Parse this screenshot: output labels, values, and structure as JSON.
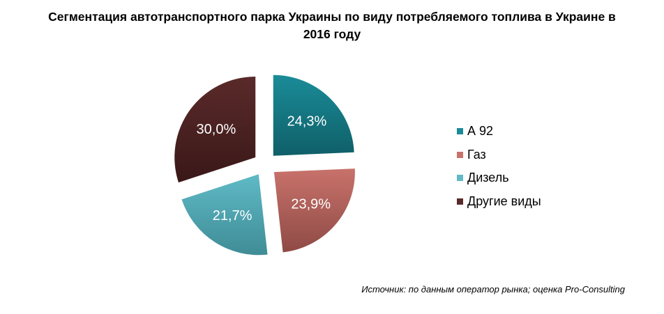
{
  "chart_data": {
    "type": "pie",
    "title_line1": "Сегментация автотранспортного парка Украины по виду потребляемого топлива в Украине в",
    "title_line2": "2016 году",
    "slices": [
      {
        "name": "А 92",
        "value": 24.3,
        "label": "24,3%",
        "color": "#1a8c98",
        "dark": "#0f5f68"
      },
      {
        "name": "Газ",
        "value": 23.9,
        "label": "23,9%",
        "color": "#c8726b",
        "dark": "#8f4a45"
      },
      {
        "name": "Дизель",
        "value": 21.7,
        "label": "21,7%",
        "color": "#5fbac6",
        "dark": "#3f8c96"
      },
      {
        "name": "Другие виды",
        "value": 30.0,
        "label": "30,0%",
        "color": "#5a2a2a",
        "dark": "#3a1818"
      }
    ],
    "legend_position": "right",
    "source": "Источник: по данным оператор рынка; оценка Pro-Consulting"
  }
}
